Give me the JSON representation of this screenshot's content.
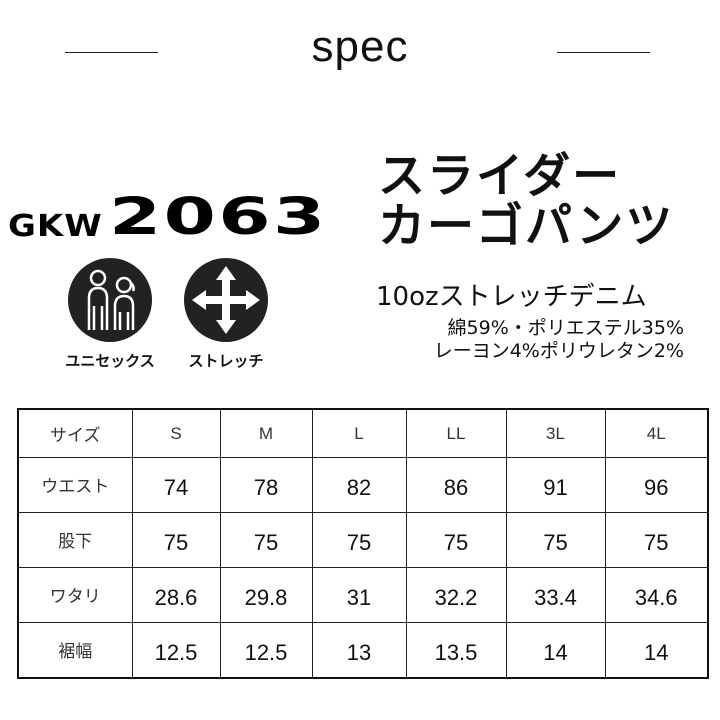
{
  "header": {
    "title": "spec"
  },
  "product": {
    "model": {
      "prefix": "GKW",
      "number": "2063"
    },
    "name_lines": [
      "スライダー",
      "カーゴパンツ"
    ],
    "fabric": "10ozストレッチデニム",
    "composition": [
      "綿59%・ポリエステル35%",
      "レーヨン4%ポリウレタン2%"
    ]
  },
  "features": [
    {
      "icon": "unisex-icon",
      "label": "ユニセックス"
    },
    {
      "icon": "stretch-arrows-icon",
      "label": "ストレッチ"
    }
  ],
  "size_table": {
    "columns": [
      "サイズ",
      "S",
      "M",
      "L",
      "LL",
      "3L",
      "4L"
    ],
    "rows": [
      {
        "label": "ウエスト",
        "values": [
          "74",
          "78",
          "82",
          "86",
          "91",
          "96"
        ]
      },
      {
        "label": "股下",
        "values": [
          "75",
          "75",
          "75",
          "75",
          "75",
          "75"
        ]
      },
      {
        "label": "ワタリ",
        "values": [
          "28.6",
          "29.8",
          "31",
          "32.2",
          "33.4",
          "34.6"
        ]
      },
      {
        "label": "裾幅",
        "values": [
          "12.5",
          "12.5",
          "13",
          "13.5",
          "14",
          "14"
        ]
      }
    ]
  }
}
